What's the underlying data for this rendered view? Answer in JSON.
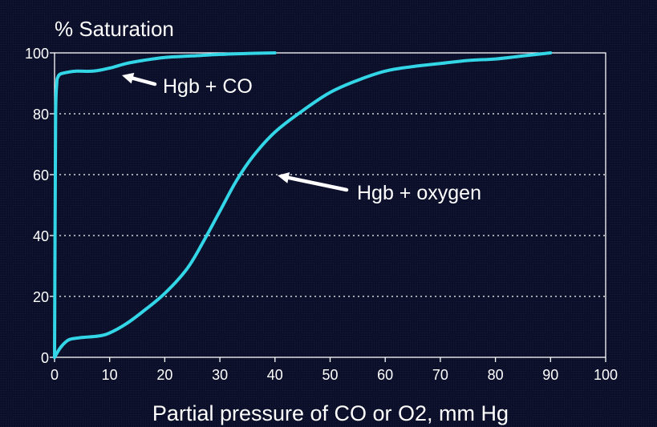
{
  "chart_data": {
    "type": "line",
    "title": "% Saturation",
    "xlabel": "Partial pressure of CO or O2, mm Hg",
    "ylabel": "",
    "xlim": [
      0,
      100
    ],
    "ylim": [
      0,
      100
    ],
    "x_ticks": [
      0,
      10,
      20,
      30,
      40,
      50,
      60,
      70,
      80,
      90,
      100
    ],
    "y_ticks": [
      0,
      20,
      40,
      60,
      80,
      100
    ],
    "grid": "horizontal dotted",
    "legend": "none",
    "colors": {
      "background": "#0b0f2a",
      "line": "#33d6e6",
      "axis": "#ffffff",
      "grid": "#ffffff",
      "text": "#ffffff"
    },
    "series": [
      {
        "name": "Hgb + CO",
        "x": [
          0,
          0.1,
          0.2,
          0.4,
          0.6,
          1,
          2,
          4,
          7,
          10,
          13,
          16,
          20,
          25,
          30,
          35,
          40
        ],
        "y": [
          0,
          45,
          80,
          90,
          92,
          93,
          93.5,
          94,
          94,
          95,
          96.5,
          97.5,
          98.5,
          99,
          99.5,
          99.8,
          100
        ]
      },
      {
        "name": "Hgb + oxygen",
        "x": [
          0,
          1,
          2,
          3,
          5,
          8,
          10,
          13,
          16,
          20,
          24,
          27,
          30,
          33,
          36,
          40,
          45,
          50,
          55,
          60,
          65,
          70,
          75,
          80,
          85,
          90
        ],
        "y": [
          0,
          3,
          5,
          6,
          6.5,
          7,
          8,
          11,
          15,
          21,
          29,
          38,
          48,
          58,
          66,
          74,
          81,
          87,
          91,
          94,
          95.5,
          96.5,
          97.5,
          98,
          99,
          100
        ]
      }
    ],
    "annotations": [
      {
        "text": "Hgb + CO",
        "points_to": [
          12,
          95
        ]
      },
      {
        "text": "Hgb + oxygen",
        "points_to": [
          40,
          60
        ]
      }
    ]
  }
}
